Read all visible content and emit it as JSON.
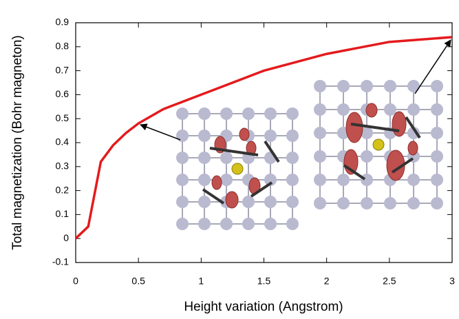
{
  "chart_data": {
    "type": "line",
    "x_label": "Height variation  (Angstrom)",
    "y_label": "Total magnetization (Bohr magneton)",
    "x": [
      0,
      0.1,
      0.2,
      0.3,
      0.4,
      0.5,
      0.7,
      1,
      1.5,
      2,
      2.5,
      3
    ],
    "series": [
      {
        "name": "Total magnetization",
        "color": "#e41a1c",
        "values": [
          0,
          0.05,
          0.32,
          0.39,
          0.44,
          0.48,
          0.54,
          0.6,
          0.7,
          0.77,
          0.82,
          0.84
        ]
      }
    ],
    "xlim": [
      0,
      3
    ],
    "ylim": [
      -0.1,
      0.9
    ],
    "xticks": [
      0,
      0.5,
      1,
      1.5,
      2,
      2.5,
      3
    ],
    "yticks": [
      -0.1,
      0,
      0.1,
      0.2,
      0.3,
      0.4,
      0.5,
      0.6,
      0.7,
      0.8,
      0.9
    ],
    "grid": false
  }
}
